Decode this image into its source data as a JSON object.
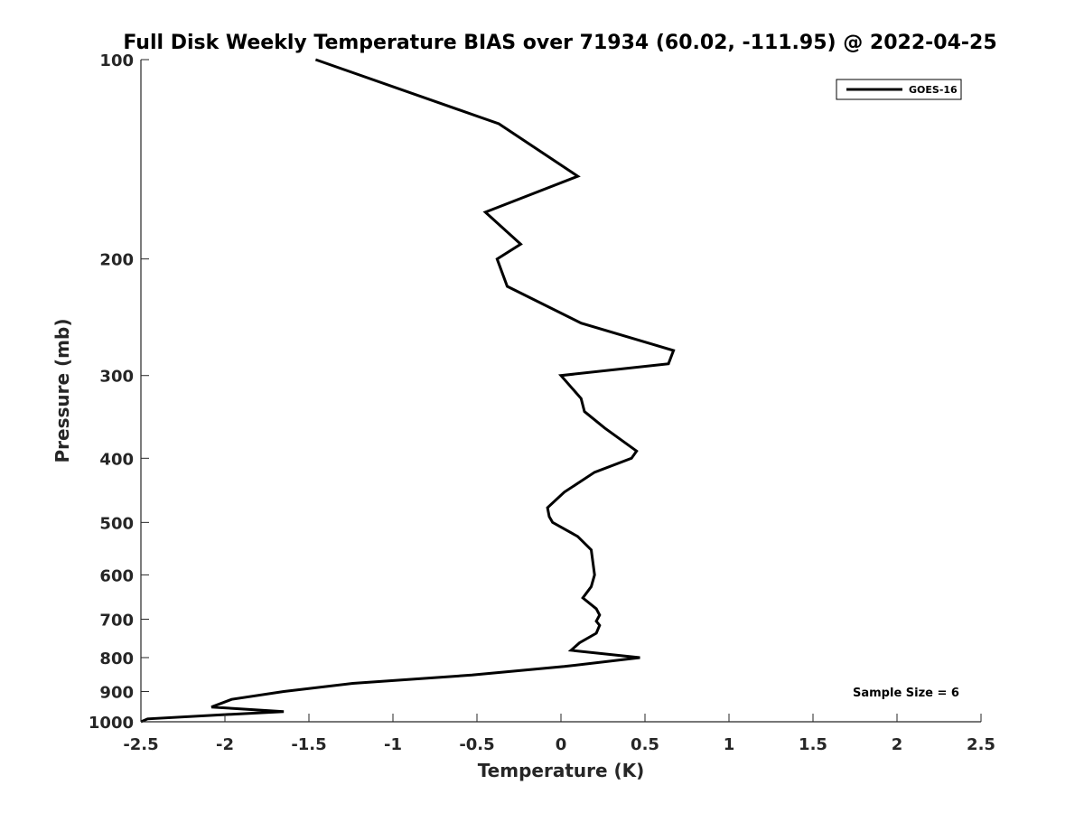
{
  "chart_data": {
    "type": "line",
    "title": "Full Disk Weekly Temperature BIAS over 71934 (60.02, -111.95) @ 2022-04-25",
    "xlabel": "Temperature (K)",
    "ylabel": "Pressure (mb)",
    "xlim": [
      -2.5,
      2.5
    ],
    "ylim": [
      100,
      1000
    ],
    "y_scale": "log",
    "y_reversed": true,
    "x_ticks": [
      "-2.5",
      "-2",
      "-1.5",
      "-1",
      "-0.5",
      "0",
      "0.5",
      "1",
      "1.5",
      "2",
      "2.5"
    ],
    "x_tick_values": [
      -2.5,
      -2,
      -1.5,
      -1,
      -0.5,
      0,
      0.5,
      1,
      1.5,
      2,
      2.5
    ],
    "y_ticks": [
      "100",
      "200",
      "300",
      "400",
      "500",
      "600",
      "700",
      "800",
      "900",
      "1000"
    ],
    "y_tick_values": [
      100,
      200,
      300,
      400,
      500,
      600,
      700,
      800,
      900,
      1000
    ],
    "grid": false,
    "legend_position": "top-right",
    "annotation": "Sample Size = 6",
    "series": [
      {
        "name": "GOES-16",
        "color": "#000000",
        "points": [
          {
            "x": -1.46,
            "p": 100
          },
          {
            "x": -0.37,
            "p": 125
          },
          {
            "x": 0.1,
            "p": 150
          },
          {
            "x": -0.45,
            "p": 170
          },
          {
            "x": -0.24,
            "p": 190
          },
          {
            "x": -0.38,
            "p": 200
          },
          {
            "x": -0.32,
            "p": 220
          },
          {
            "x": 0.12,
            "p": 250
          },
          {
            "x": 0.67,
            "p": 275
          },
          {
            "x": 0.64,
            "p": 288
          },
          {
            "x": 0.0,
            "p": 300
          },
          {
            "x": 0.12,
            "p": 325
          },
          {
            "x": 0.14,
            "p": 340
          },
          {
            "x": 0.26,
            "p": 360
          },
          {
            "x": 0.45,
            "p": 390
          },
          {
            "x": 0.42,
            "p": 400
          },
          {
            "x": 0.2,
            "p": 420
          },
          {
            "x": 0.02,
            "p": 450
          },
          {
            "x": -0.08,
            "p": 475
          },
          {
            "x": -0.07,
            "p": 490
          },
          {
            "x": -0.05,
            "p": 500
          },
          {
            "x": 0.1,
            "p": 525
          },
          {
            "x": 0.18,
            "p": 550
          },
          {
            "x": 0.2,
            "p": 600
          },
          {
            "x": 0.18,
            "p": 625
          },
          {
            "x": 0.13,
            "p": 650
          },
          {
            "x": 0.21,
            "p": 675
          },
          {
            "x": 0.23,
            "p": 690
          },
          {
            "x": 0.21,
            "p": 705
          },
          {
            "x": 0.23,
            "p": 715
          },
          {
            "x": 0.21,
            "p": 735
          },
          {
            "x": 0.11,
            "p": 760
          },
          {
            "x": 0.06,
            "p": 780
          },
          {
            "x": 0.47,
            "p": 800
          },
          {
            "x": 0.02,
            "p": 825
          },
          {
            "x": -0.53,
            "p": 850
          },
          {
            "x": -1.24,
            "p": 875
          },
          {
            "x": -1.65,
            "p": 900
          },
          {
            "x": -1.96,
            "p": 925
          },
          {
            "x": -2.08,
            "p": 950
          },
          {
            "x": -1.65,
            "p": 965
          },
          {
            "x": -1.98,
            "p": 975
          },
          {
            "x": -2.46,
            "p": 990
          },
          {
            "x": -2.5,
            "p": 1000
          }
        ]
      }
    ]
  }
}
